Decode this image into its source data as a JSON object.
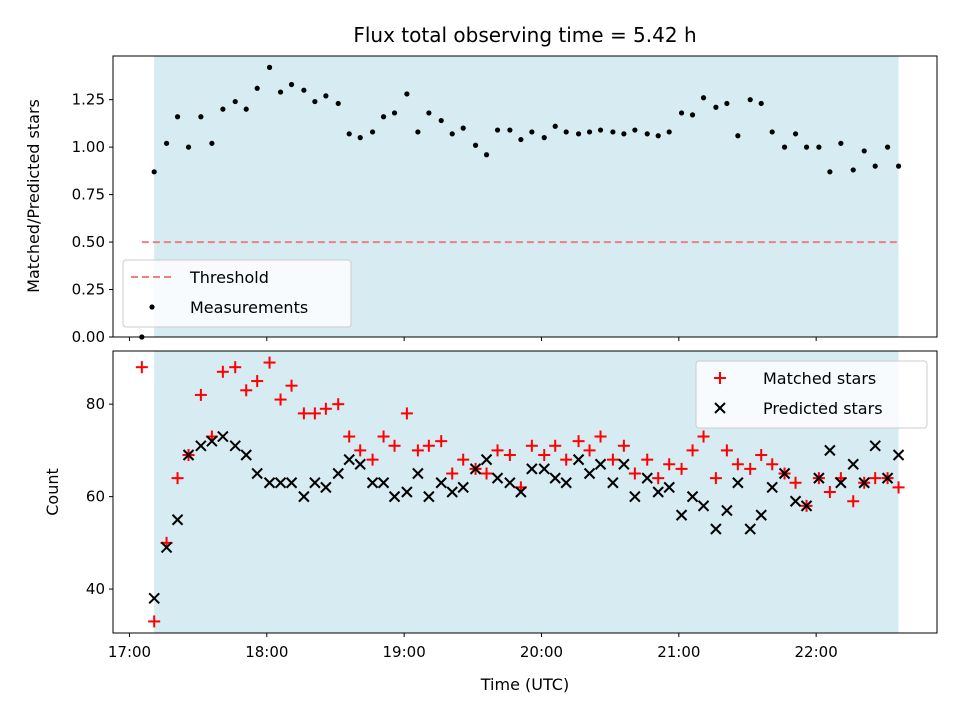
{
  "chart_data": [
    {
      "type": "scatter",
      "title": "Flux total observing time = 5.42 h",
      "xlabel": "",
      "ylabel": "Matched/Predicted stars",
      "xlim_hours": [
        16.88,
        22.88
      ],
      "ylim": [
        0,
        1.48
      ],
      "yticks": [
        0.0,
        0.25,
        0.5,
        0.75,
        1.0,
        1.25
      ],
      "ytick_labels": [
        "0.00",
        "0.25",
        "0.50",
        "0.75",
        "1.00",
        "1.25"
      ],
      "observing_window": [
        17.18,
        22.6
      ],
      "threshold": {
        "name": "Threshold",
        "value": 0.5,
        "x_range": [
          17.09,
          22.6
        ],
        "color": "#f08080"
      },
      "legend_position": "lower-left",
      "series": [
        {
          "name": "Measurements",
          "color": "#000000",
          "x": [
            17.09,
            17.18,
            17.27,
            17.35,
            17.43,
            17.52,
            17.6,
            17.68,
            17.77,
            17.85,
            17.93,
            18.02,
            18.1,
            18.18,
            18.27,
            18.35,
            18.43,
            18.52,
            18.6,
            18.68,
            18.77,
            18.85,
            18.93,
            19.02,
            19.1,
            19.18,
            19.27,
            19.35,
            19.43,
            19.52,
            19.6,
            19.68,
            19.77,
            19.85,
            19.93,
            20.02,
            20.1,
            20.18,
            20.27,
            20.35,
            20.43,
            20.52,
            20.6,
            20.68,
            20.77,
            20.85,
            20.93,
            21.02,
            21.1,
            21.18,
            21.27,
            21.35,
            21.43,
            21.52,
            21.6,
            21.68,
            21.77,
            21.85,
            21.93,
            22.02,
            22.1,
            22.18,
            22.27,
            22.35,
            22.43,
            22.52,
            22.6
          ],
          "y": [
            0.0,
            0.87,
            1.02,
            1.16,
            1.0,
            1.16,
            1.02,
            1.2,
            1.24,
            1.2,
            1.31,
            1.42,
            1.29,
            1.33,
            1.3,
            1.24,
            1.27,
            1.23,
            1.07,
            1.05,
            1.08,
            1.16,
            1.18,
            1.28,
            1.08,
            1.18,
            1.14,
            1.07,
            1.1,
            1.01,
            0.96,
            1.09,
            1.09,
            1.04,
            1.08,
            1.05,
            1.11,
            1.08,
            1.07,
            1.08,
            1.09,
            1.08,
            1.07,
            1.09,
            1.07,
            1.06,
            1.08,
            1.18,
            1.17,
            1.26,
            1.21,
            1.23,
            1.06,
            1.25,
            1.23,
            1.08,
            1.0,
            1.07,
            1.0,
            1.0,
            0.87,
            1.02,
            0.88,
            0.98,
            0.9,
            1.0,
            0.9
          ]
        }
      ]
    },
    {
      "type": "scatter",
      "title": "",
      "xlabel": "Time (UTC)",
      "ylabel": "Count",
      "xlim_hours": [
        16.88,
        22.88
      ],
      "ylim": [
        30.5,
        91.5
      ],
      "yticks": [
        40,
        60,
        80
      ],
      "ytick_labels": [
        "40",
        "60",
        "80"
      ],
      "xticks_hours": [
        17,
        18,
        19,
        20,
        21,
        22
      ],
      "xtick_labels": [
        "17:00",
        "18:00",
        "19:00",
        "20:00",
        "21:00",
        "22:00"
      ],
      "observing_window": [
        17.18,
        22.6
      ],
      "legend_position": "upper-right",
      "series": [
        {
          "name": "Matched stars",
          "marker": "plus",
          "color": "#ff0000",
          "x": [
            17.09,
            17.18,
            17.27,
            17.35,
            17.43,
            17.52,
            17.6,
            17.68,
            17.77,
            17.85,
            17.93,
            18.02,
            18.1,
            18.18,
            18.27,
            18.35,
            18.43,
            18.52,
            18.6,
            18.68,
            18.77,
            18.85,
            18.93,
            19.02,
            19.1,
            19.18,
            19.27,
            19.35,
            19.43,
            19.52,
            19.6,
            19.68,
            19.77,
            19.85,
            19.93,
            20.02,
            20.1,
            20.18,
            20.27,
            20.35,
            20.43,
            20.52,
            20.6,
            20.68,
            20.77,
            20.85,
            20.93,
            21.02,
            21.1,
            21.18,
            21.27,
            21.35,
            21.43,
            21.52,
            21.6,
            21.68,
            21.77,
            21.85,
            21.93,
            22.02,
            22.1,
            22.18,
            22.27,
            22.35,
            22.43,
            22.52,
            22.6
          ],
          "y": [
            88,
            33,
            50,
            64,
            69,
            82,
            73,
            87,
            88,
            83,
            85,
            89,
            81,
            84,
            78,
            78,
            79,
            80,
            73,
            70,
            68,
            73,
            71,
            78,
            70,
            71,
            72,
            65,
            68,
            66,
            65,
            70,
            69,
            62,
            71,
            69,
            71,
            68,
            72,
            70,
            73,
            68,
            71,
            65,
            68,
            64,
            67,
            66,
            70,
            73,
            64,
            70,
            67,
            66,
            69,
            67,
            65,
            63,
            58,
            64,
            61,
            64,
            59,
            63,
            64,
            64,
            62
          ]
        },
        {
          "name": "Predicted stars",
          "marker": "x",
          "color": "#000000",
          "x": [
            17.18,
            17.27,
            17.35,
            17.43,
            17.52,
            17.6,
            17.68,
            17.77,
            17.85,
            17.93,
            18.02,
            18.1,
            18.18,
            18.27,
            18.35,
            18.43,
            18.52,
            18.6,
            18.68,
            18.77,
            18.85,
            18.93,
            19.02,
            19.1,
            19.18,
            19.27,
            19.35,
            19.43,
            19.52,
            19.6,
            19.68,
            19.77,
            19.85,
            19.93,
            20.02,
            20.1,
            20.18,
            20.27,
            20.35,
            20.43,
            20.52,
            20.6,
            20.68,
            20.77,
            20.85,
            20.93,
            21.02,
            21.1,
            21.18,
            21.27,
            21.35,
            21.43,
            21.52,
            21.6,
            21.68,
            21.77,
            21.85,
            21.93,
            22.02,
            22.1,
            22.18,
            22.27,
            22.35,
            22.43,
            22.52,
            22.6
          ],
          "y": [
            38,
            49,
            55,
            69,
            71,
            72,
            73,
            71,
            69,
            65,
            63,
            63,
            63,
            60,
            63,
            62,
            65,
            68,
            67,
            63,
            63,
            60,
            61,
            65,
            60,
            63,
            61,
            62,
            66,
            68,
            64,
            63,
            61,
            66,
            66,
            64,
            63,
            68,
            65,
            67,
            63,
            67,
            60,
            64,
            61,
            62,
            56,
            60,
            58,
            53,
            57,
            63,
            53,
            56,
            62,
            65,
            59,
            58,
            64,
            70,
            63,
            67,
            63,
            71,
            64,
            69
          ]
        }
      ]
    }
  ]
}
